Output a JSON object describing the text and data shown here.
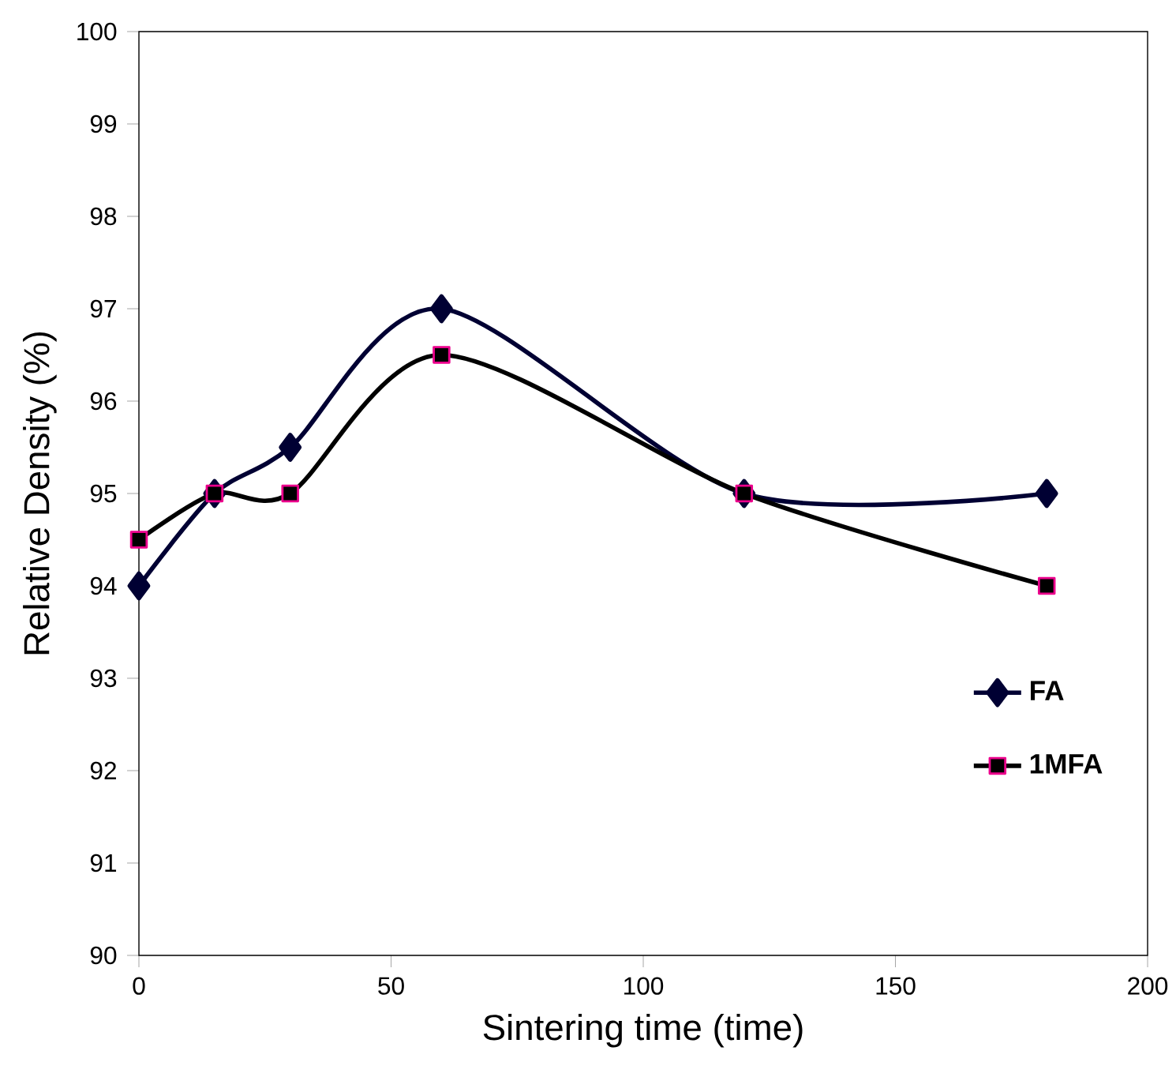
{
  "chart_data": {
    "type": "line",
    "xlabel": "Sintering time (time)",
    "ylabel": "Relative Density (%)",
    "xlim": [
      0,
      200
    ],
    "xticks": [
      0,
      50,
      100,
      150,
      200
    ],
    "ylim": [
      90,
      100
    ],
    "yticks": [
      90,
      91,
      92,
      93,
      94,
      95,
      96,
      97,
      98,
      99,
      100
    ],
    "x": [
      0,
      15,
      30,
      60,
      120,
      180
    ],
    "series": [
      {
        "name": "FA",
        "color": "#000033",
        "marker": "diamond",
        "values": [
          94,
          95,
          95.5,
          97,
          95,
          95
        ]
      },
      {
        "name": "1MFA",
        "color": "#000000",
        "marker": "square",
        "values": [
          94.5,
          95,
          95,
          96.5,
          95,
          94
        ]
      }
    ],
    "legend": "bottom right",
    "grid": false,
    "line_style": "solid"
  }
}
